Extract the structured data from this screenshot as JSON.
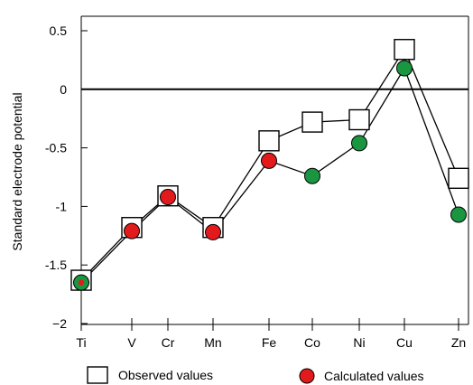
{
  "chart_data": {
    "type": "line",
    "ylabel": "Standard electrode potential",
    "xlabel": "",
    "categories": [
      "Ti",
      "V",
      "Cr",
      "Mn",
      "Fe",
      "Co",
      "Ni",
      "Cu",
      "Zn"
    ],
    "ylim": [
      -2,
      0.5
    ],
    "y_ticks": [
      {
        "value": 0.5,
        "label": "0.5"
      },
      {
        "value": 0,
        "label": "0"
      },
      {
        "value": -0.5,
        "label": "-0.5"
      },
      {
        "value": -1,
        "label": "-1"
      },
      {
        "value": -1.5,
        "label": "-1.5"
      },
      {
        "value": -2,
        "label": "−2"
      }
    ],
    "reference_line": 0,
    "grid": false,
    "legend_position": "bottom",
    "series": [
      {
        "name": "Observed values",
        "marker": "open-square",
        "color": "#000000",
        "values": [
          -1.63,
          -1.18,
          -0.91,
          -1.18,
          -0.44,
          -0.28,
          -0.26,
          0.34,
          -0.76
        ]
      },
      {
        "name": "Calculated values",
        "marker": "filled-circle",
        "values": [
          -1.65,
          -1.21,
          -0.92,
          -1.22,
          -0.61,
          -0.74,
          -0.46,
          0.18,
          -1.07
        ],
        "point_colors": [
          "#1a9641",
          "#e31a1c",
          "#e31a1c",
          "#e31a1c",
          "#e31a1c",
          "#1a9641",
          "#1a9641",
          "#1a9641",
          "#1a9641"
        ],
        "inner_dot": [
          true,
          false,
          false,
          false,
          false,
          false,
          false,
          false,
          false
        ]
      }
    ]
  },
  "colors": {
    "red_marker": "#e31a1c",
    "green_marker": "#1a9641"
  }
}
